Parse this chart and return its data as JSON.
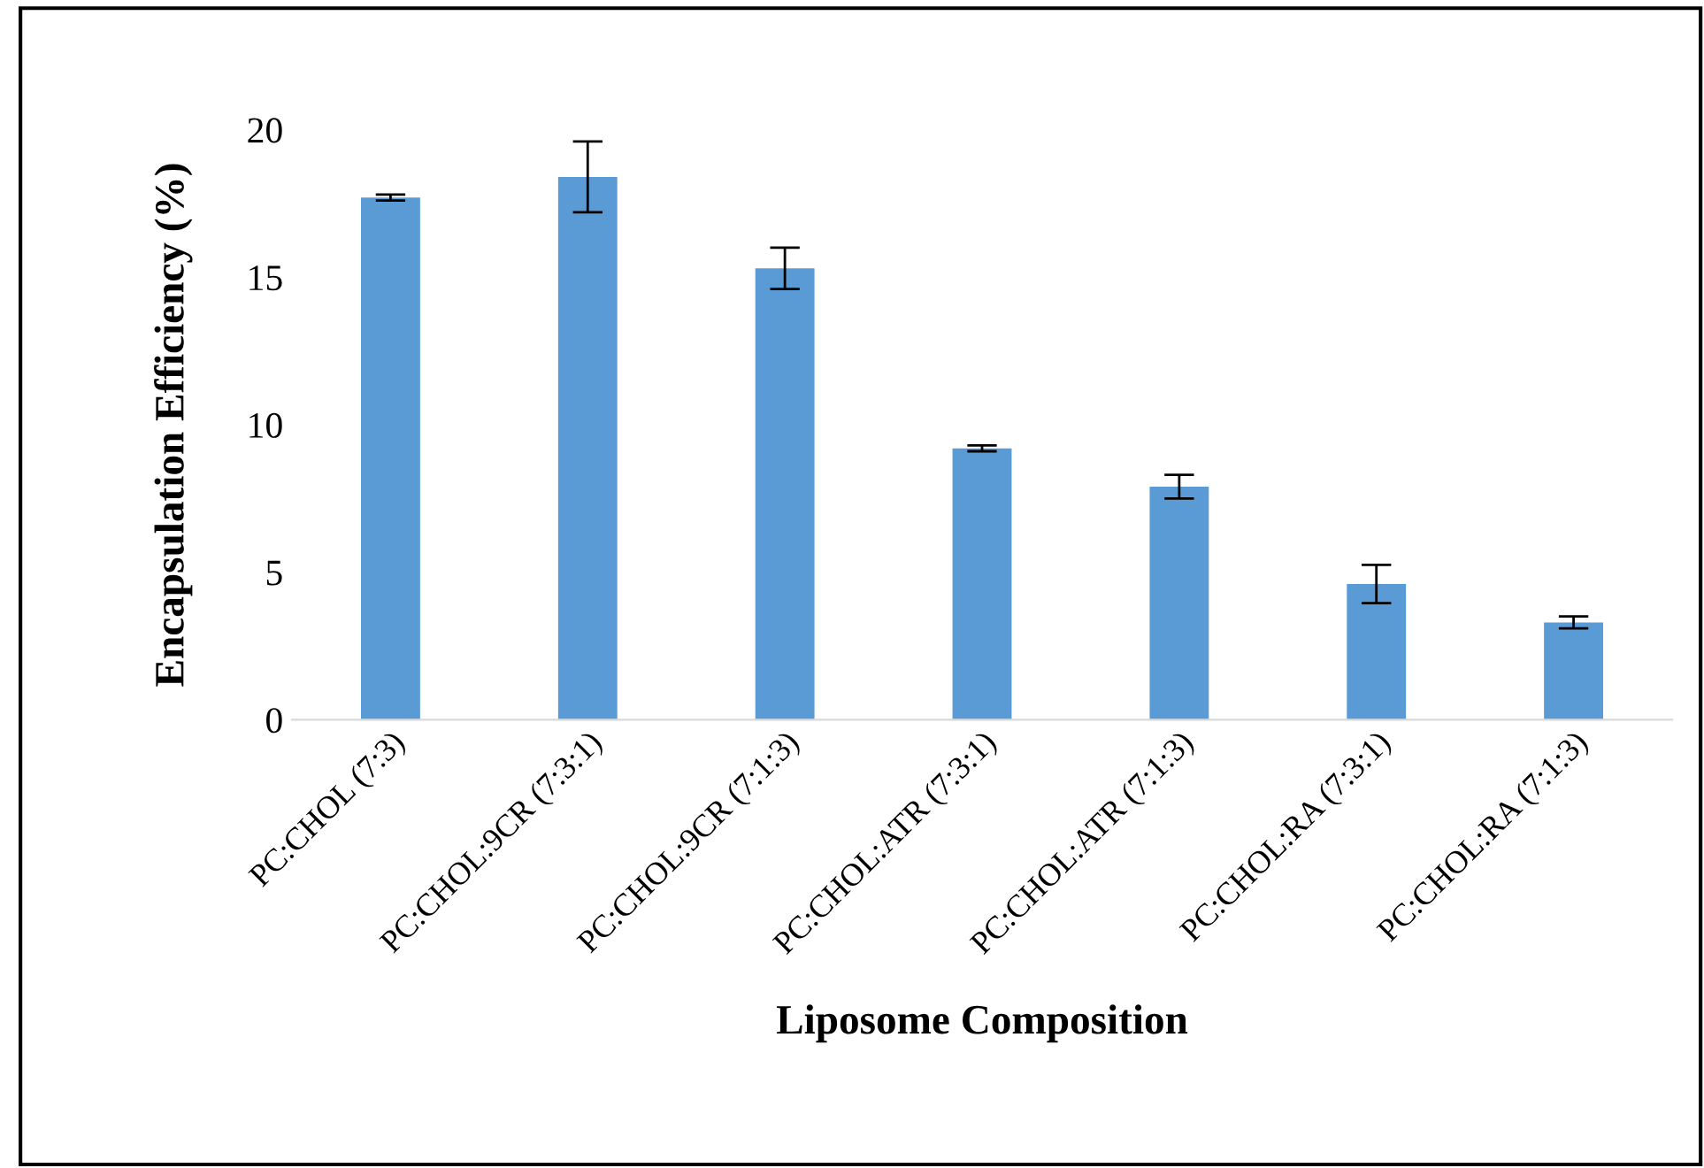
{
  "chart_data": {
    "type": "bar",
    "xlabel": "Liposome Composition",
    "ylabel": "Encapsulation Efficiency (%)",
    "categories": [
      "PC:CHOL (7:3)",
      "PC:CHOL:9CR (7:3:1)",
      "PC:CHOL:9CR (7:1:3)",
      "PC:CHOL:ATR (7:3:1)",
      "PC:CHOL:ATR (7:1:3)",
      "PC:CHOL:RA (7:3:1)",
      "PC:CHOL:RA (7:1:3)"
    ],
    "values": [
      17.7,
      18.4,
      15.3,
      9.2,
      7.9,
      4.6,
      3.3
    ],
    "errors": [
      0.1,
      1.2,
      0.7,
      0.1,
      0.4,
      0.65,
      0.2
    ],
    "color": "#5b9bd5",
    "ylim": [
      0,
      20
    ],
    "yticks": [
      0,
      5,
      10,
      15,
      20
    ],
    "grid": false,
    "legend": false
  }
}
